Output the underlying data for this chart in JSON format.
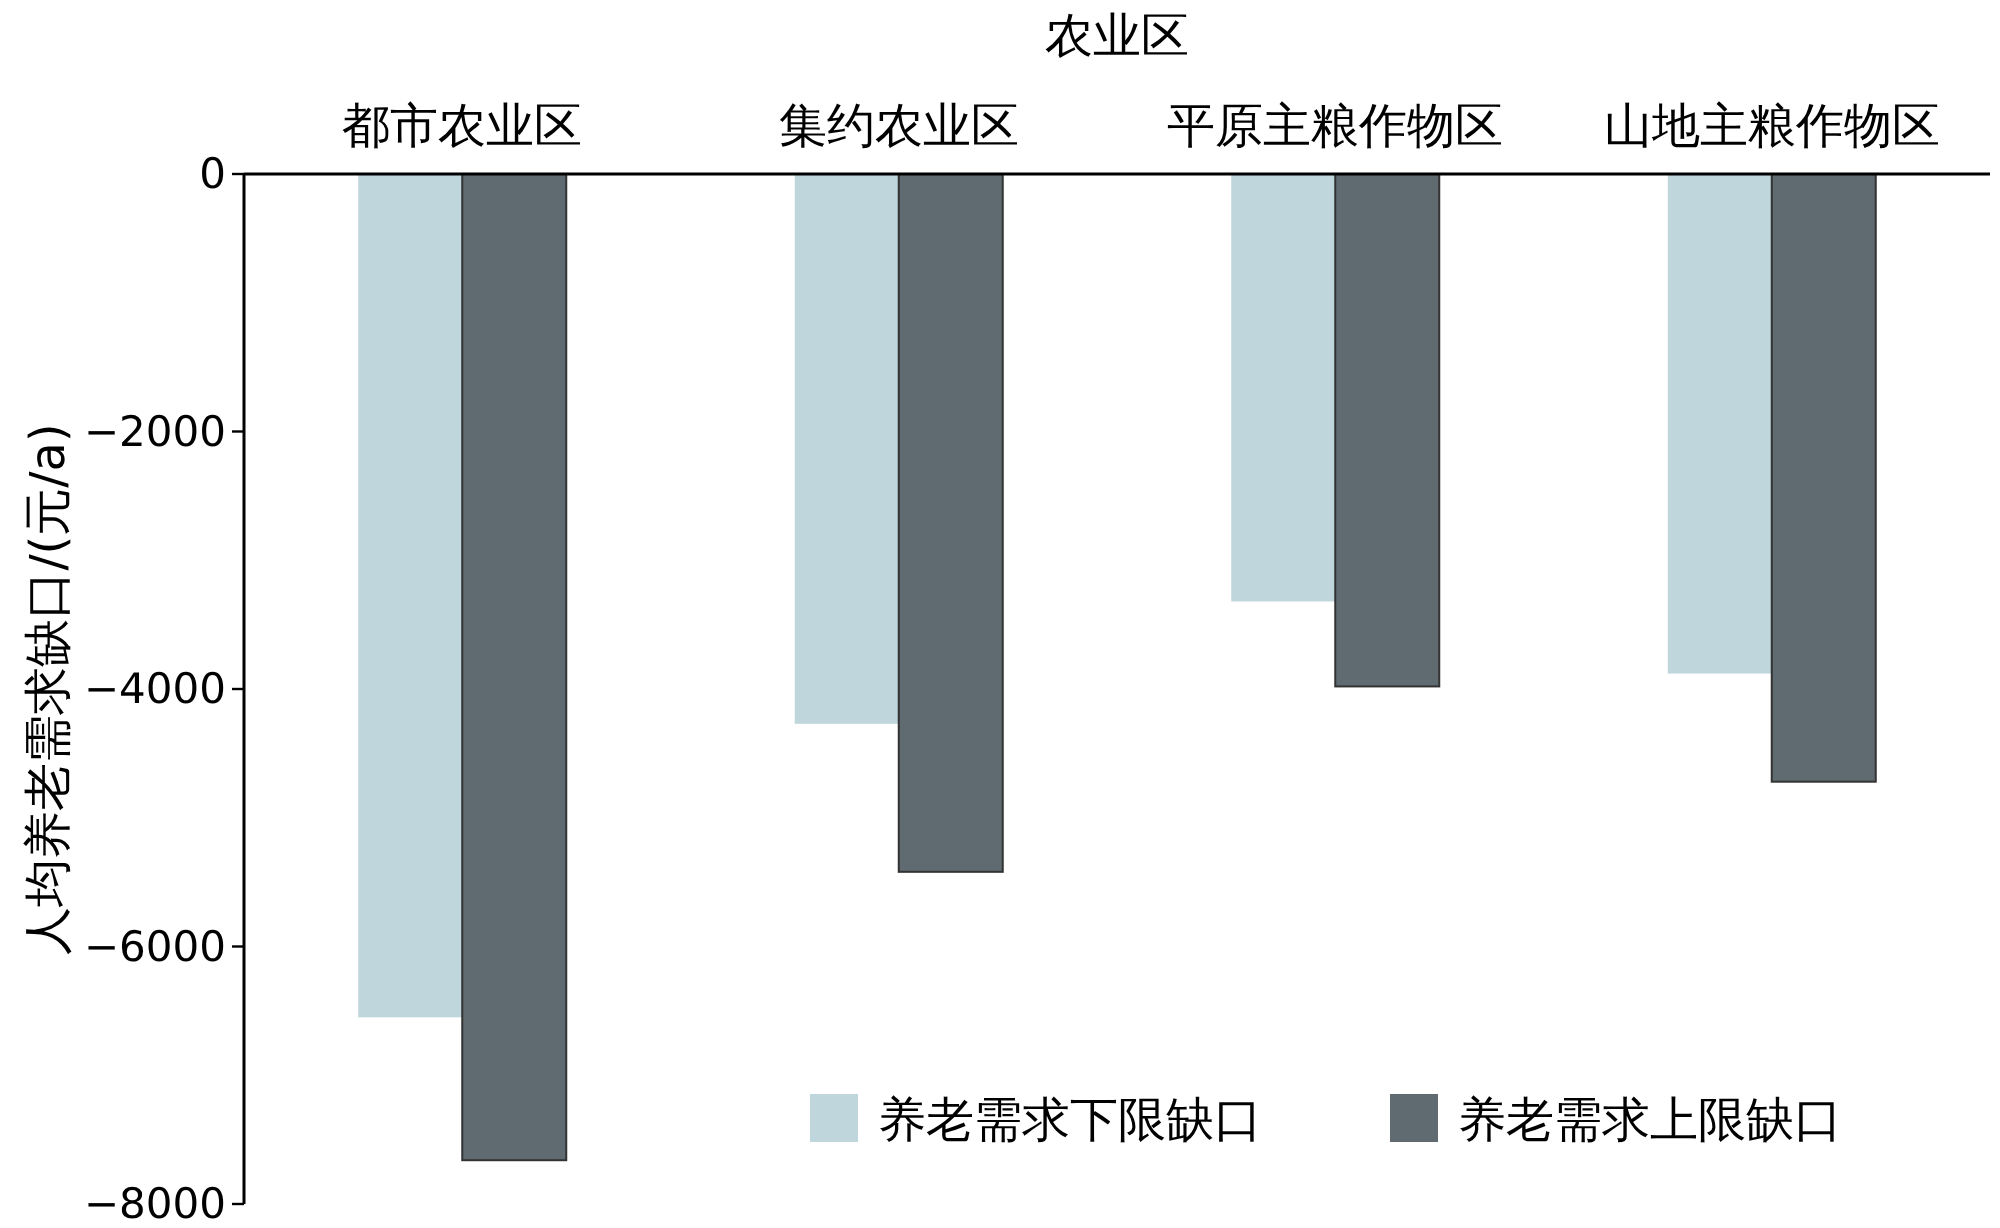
{
  "chart_data": {
    "type": "bar",
    "xlabel": "农业区",
    "ylabel": "人均养老需求缺口/(元/a)",
    "categories": [
      "都市农业区",
      "集约农业区",
      "平原主粮作物区",
      "山地主粮作物区"
    ],
    "series": [
      {
        "name": "养老需求下限缺口",
        "color": "#bfd6dc",
        "values": [
          -6550,
          -4270,
          -3320,
          -3880
        ]
      },
      {
        "name": "养老需求上限缺口",
        "color": "#5f6b70",
        "values": [
          -7660,
          -5420,
          -3980,
          -4720
        ]
      }
    ],
    "ylim": [
      -8000,
      0
    ],
    "yticks": [
      0,
      -2000,
      -4000,
      -6000,
      -8000
    ],
    "legend": "bottom right"
  }
}
